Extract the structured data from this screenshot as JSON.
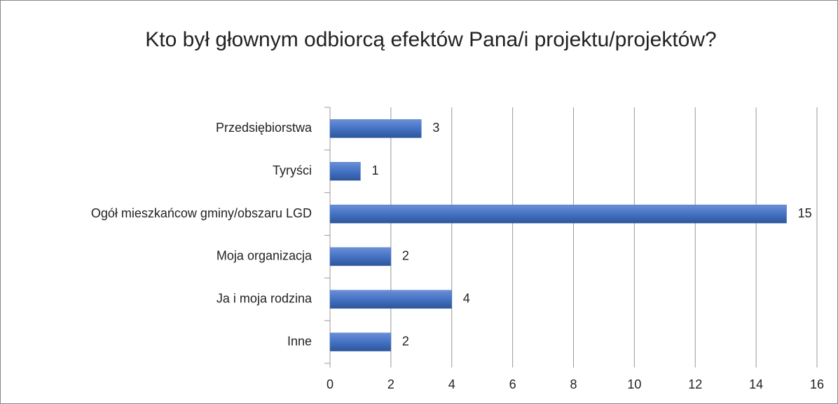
{
  "chart_data": {
    "type": "bar",
    "orientation": "horizontal",
    "title": "Kto był głownym odbiorcą efektów Pana/i projektu/projektów?",
    "categories": [
      "Przedsiębiorstwa",
      "Tyryści",
      "Ogół mieszkańcow gminy/obszaru LGD",
      "Moja organizacja",
      "Ja i moja rodzina",
      "Inne"
    ],
    "values": [
      3,
      1,
      15,
      2,
      4,
      2
    ],
    "color": "#4472c4",
    "xlim": [
      0,
      16
    ],
    "xticks": [
      0,
      2,
      4,
      6,
      8,
      10,
      12,
      14,
      16
    ],
    "grid": true
  }
}
